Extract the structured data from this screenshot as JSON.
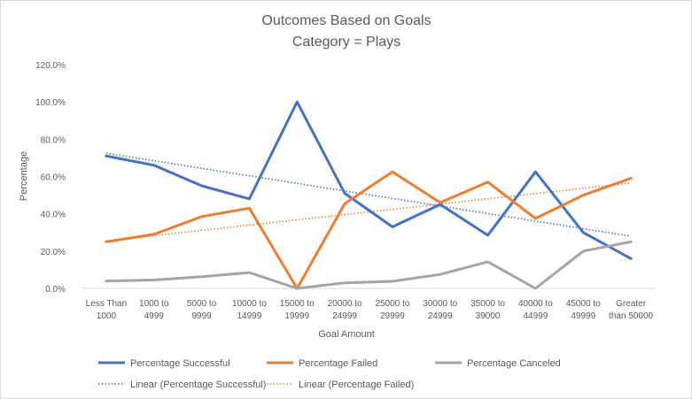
{
  "chart_data": {
    "type": "line",
    "title": "Outcomes Based on Goals",
    "subtitle": "Category = Plays",
    "xlabel": "Goal Amount",
    "ylabel": "Percentage",
    "ylim": [
      0,
      120
    ],
    "y_ticks": [
      "0.0%",
      "20.0%",
      "40.0%",
      "60.0%",
      "80.0%",
      "100.0%",
      "120.0%"
    ],
    "grid": false,
    "legend_position": "bottom",
    "categories": [
      [
        "Less Than",
        "1000"
      ],
      [
        "1000 to",
        "4999"
      ],
      [
        "5000 to",
        "9999"
      ],
      [
        "10000 to",
        "14999"
      ],
      [
        "15000 to",
        "19999"
      ],
      [
        "20000 to",
        "24999"
      ],
      [
        "25000 to",
        "29999"
      ],
      [
        "30000 to",
        "24999"
      ],
      [
        "35000 to",
        "39000"
      ],
      [
        "40000 to",
        "44999"
      ],
      [
        "45000 to",
        "49999"
      ],
      [
        "Greater",
        "than 50000"
      ]
    ],
    "series": [
      {
        "name": "Percentage Successful",
        "color": "#4472c4",
        "style": "solid",
        "values": [
          71,
          66,
          55,
          48,
          100,
          51,
          33,
          45,
          28.5,
          62.5,
          30,
          16
        ]
      },
      {
        "name": "Percentage Failed",
        "color": "#ed7d31",
        "style": "solid",
        "values": [
          25,
          29,
          38.5,
          43,
          0,
          45.5,
          62.5,
          46,
          57,
          37.5,
          50,
          59
        ]
      },
      {
        "name": "Percentage Canceled",
        "color": "#a5a5a5",
        "style": "solid",
        "values": [
          4,
          4.5,
          6.3,
          8.5,
          0,
          3,
          3.8,
          7.5,
          14.3,
          0,
          20,
          25
        ]
      }
    ],
    "trendlines": [
      {
        "name": "Linear (Percentage Successful)",
        "color": "#4472c4",
        "style": "dotted",
        "of": "Percentage Successful",
        "start": 72.5,
        "end": 28
      },
      {
        "name": "Linear (Percentage Failed)",
        "color": "#ed7d31",
        "style": "dotted",
        "of": "Percentage Failed",
        "start": 25.5,
        "end": 56.5
      }
    ]
  }
}
